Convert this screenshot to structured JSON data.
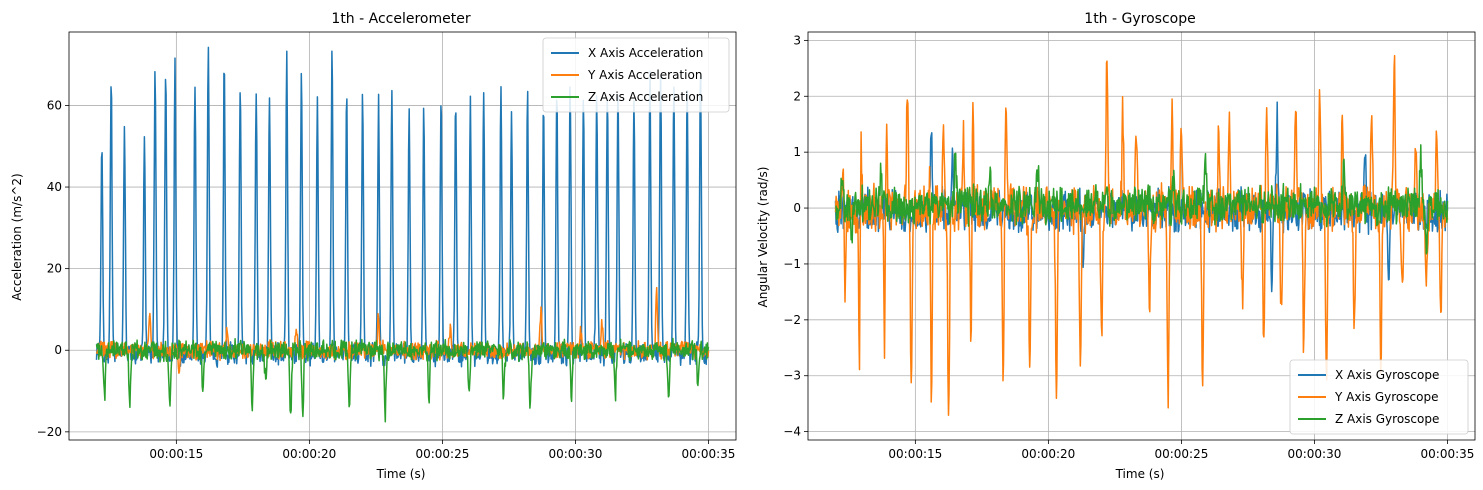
{
  "chart_data": [
    {
      "type": "line",
      "title": "1th - Accelerometer",
      "xlabel": "Time (s)",
      "ylabel": "Acceleration (m/s^2)",
      "x_range_seconds": [
        12.0,
        35.0
      ],
      "xticks": [
        {
          "t": 15,
          "label": "00:00:15"
        },
        {
          "t": 20,
          "label": "00:00:20"
        },
        {
          "t": 25,
          "label": "00:00:25"
        },
        {
          "t": 30,
          "label": "00:00:30"
        },
        {
          "t": 35,
          "label": "00:00:35"
        }
      ],
      "ylim": [
        -22,
        78
      ],
      "yticks": [
        -20,
        0,
        20,
        40,
        60
      ],
      "grid": true,
      "legend_position": "upper right",
      "series": [
        {
          "name": "X Axis Acceleration",
          "color": "#1f77b4",
          "baseline": -1,
          "noise": 3.2,
          "peaks": [
            [
              12.2,
              52
            ],
            [
              12.55,
              67
            ],
            [
              13.05,
              54
            ],
            [
              13.8,
              53
            ],
            [
              14.2,
              70
            ],
            [
              14.6,
              70
            ],
            [
              14.95,
              70
            ],
            [
              15.7,
              65
            ],
            [
              16.2,
              74
            ],
            [
              16.8,
              70
            ],
            [
              17.4,
              64
            ],
            [
              18.0,
              65
            ],
            [
              18.5,
              62
            ],
            [
              19.15,
              71
            ],
            [
              19.7,
              68
            ],
            [
              20.3,
              62
            ],
            [
              20.85,
              73
            ],
            [
              21.4,
              64
            ],
            [
              22.0,
              62
            ],
            [
              22.6,
              61
            ],
            [
              23.1,
              63
            ],
            [
              23.75,
              60
            ],
            [
              24.3,
              59
            ],
            [
              24.95,
              63
            ],
            [
              25.5,
              61
            ],
            [
              26.05,
              61
            ],
            [
              26.55,
              63
            ],
            [
              27.2,
              64
            ],
            [
              27.6,
              59
            ],
            [
              28.2,
              63
            ],
            [
              28.8,
              60
            ],
            [
              29.3,
              63
            ],
            [
              29.8,
              64
            ],
            [
              30.3,
              62
            ],
            [
              30.8,
              63
            ],
            [
              31.2,
              65
            ],
            [
              31.6,
              65
            ],
            [
              32.2,
              62
            ],
            [
              32.8,
              67
            ],
            [
              33.2,
              69
            ],
            [
              33.7,
              66
            ],
            [
              34.2,
              63
            ],
            [
              34.7,
              71
            ]
          ]
        },
        {
          "name": "Y Axis Acceleration",
          "color": "#ff7f0e",
          "baseline": 0,
          "noise": 2.6,
          "peaks": [
            [
              14.0,
              9
            ],
            [
              15.1,
              -5
            ],
            [
              16.9,
              5
            ],
            [
              19.5,
              6
            ],
            [
              22.6,
              9
            ],
            [
              25.3,
              6
            ],
            [
              28.7,
              10
            ],
            [
              30.2,
              5
            ],
            [
              31.0,
              7
            ],
            [
              33.05,
              14
            ]
          ]
        },
        {
          "name": "Z Axis Acceleration",
          "color": "#2ca02c",
          "baseline": 0,
          "noise": 3.0,
          "peaks": [
            [
              12.3,
              -11
            ],
            [
              13.25,
              -13
            ],
            [
              14.75,
              -15
            ],
            [
              16.0,
              -12
            ],
            [
              17.85,
              -13
            ],
            [
              18.35,
              -8
            ],
            [
              19.3,
              -17
            ],
            [
              19.75,
              -17
            ],
            [
              21.5,
              -13
            ],
            [
              22.85,
              -16
            ],
            [
              24.5,
              -12
            ],
            [
              26.0,
              -11
            ],
            [
              27.3,
              -12
            ],
            [
              28.3,
              -13
            ],
            [
              29.85,
              -12
            ],
            [
              31.5,
              -11
            ],
            [
              33.5,
              -12
            ],
            [
              34.6,
              -9
            ]
          ]
        }
      ]
    },
    {
      "type": "line",
      "title": "1th - Gyroscope",
      "xlabel": "Time (s)",
      "ylabel": "Angular Velocity (rad/s)",
      "x_range_seconds": [
        12.0,
        35.0
      ],
      "xticks": [
        {
          "t": 15,
          "label": "00:00:15"
        },
        {
          "t": 20,
          "label": "00:00:20"
        },
        {
          "t": 25,
          "label": "00:00:25"
        },
        {
          "t": 30,
          "label": "00:00:30"
        },
        {
          "t": 35,
          "label": "00:00:35"
        }
      ],
      "ylim": [
        -4.15,
        3.15
      ],
      "yticks": [
        -4,
        -3,
        -2,
        -1,
        0,
        1,
        2,
        3
      ],
      "grid": true,
      "legend_position": "lower right",
      "series": [
        {
          "name": "X Axis Gyroscope",
          "color": "#1f77b4",
          "baseline": -0.05,
          "noise": 0.45,
          "peaks": [
            [
              15.6,
              1.65
            ],
            [
              16.4,
              1.0
            ],
            [
              21.3,
              -0.9
            ],
            [
              28.6,
              1.5
            ],
            [
              28.4,
              -1.45
            ],
            [
              32.8,
              -1.45
            ],
            [
              31.9,
              0.95
            ]
          ]
        },
        {
          "name": "Y Axis Gyroscope",
          "color": "#ff7f0e",
          "baseline": 0.0,
          "noise": 0.5,
          "peaks": [
            [
              12.3,
              1.25
            ],
            [
              12.35,
              -1.8
            ],
            [
              12.95,
              1.75
            ],
            [
              12.9,
              -2.95
            ],
            [
              13.9,
              2.05
            ],
            [
              13.85,
              -2.9
            ],
            [
              14.7,
              1.9
            ],
            [
              14.85,
              -3.3
            ],
            [
              15.55,
              1.0
            ],
            [
              15.6,
              -3.65
            ],
            [
              16.05,
              1.6
            ],
            [
              16.25,
              -3.9
            ],
            [
              16.8,
              1.35
            ],
            [
              17.15,
              2.35
            ],
            [
              17.1,
              -3.1
            ],
            [
              18.4,
              1.6
            ],
            [
              18.3,
              -3.1
            ],
            [
              19.3,
              -2.8
            ],
            [
              20.3,
              -3.6
            ],
            [
              21.2,
              -3.1
            ],
            [
              22.2,
              2.9
            ],
            [
              22.0,
              -2.4
            ],
            [
              22.8,
              1.8
            ],
            [
              23.3,
              1.5
            ],
            [
              23.8,
              -1.7
            ],
            [
              24.65,
              1.75
            ],
            [
              24.5,
              -3.45
            ],
            [
              25.0,
              1.6
            ],
            [
              25.8,
              -3.3
            ],
            [
              26.4,
              1.35
            ],
            [
              26.8,
              1.8
            ],
            [
              27.3,
              -1.9
            ],
            [
              28.2,
              1.9
            ],
            [
              28.1,
              -2.5
            ],
            [
              28.75,
              -2.0
            ],
            [
              29.3,
              1.9
            ],
            [
              29.6,
              -2.5
            ],
            [
              30.2,
              1.85
            ],
            [
              30.45,
              -3.1
            ],
            [
              31.05,
              1.75
            ],
            [
              31.5,
              -2.2
            ],
            [
              32.15,
              1.5
            ],
            [
              32.5,
              -2.75
            ],
            [
              33.0,
              2.55
            ],
            [
              33.3,
              -1.8
            ],
            [
              33.8,
              1.0
            ],
            [
              34.2,
              -1.5
            ],
            [
              34.6,
              1.35
            ],
            [
              34.75,
              -2.1
            ]
          ]
        },
        {
          "name": "Z Axis Gyroscope",
          "color": "#2ca02c",
          "baseline": 0.05,
          "noise": 0.4,
          "peaks": [
            [
              12.25,
              0.7
            ],
            [
              12.6,
              -0.65
            ],
            [
              13.7,
              0.75
            ],
            [
              16.5,
              1.0
            ],
            [
              17.8,
              0.7
            ],
            [
              19.6,
              0.7
            ],
            [
              24.7,
              0.6
            ],
            [
              25.9,
              0.8
            ],
            [
              31.1,
              0.9
            ],
            [
              34.0,
              0.9
            ],
            [
              34.2,
              -0.75
            ]
          ]
        }
      ]
    }
  ]
}
